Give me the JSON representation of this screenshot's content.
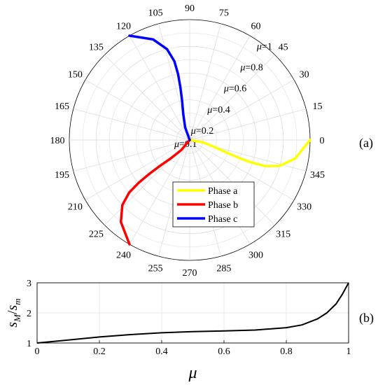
{
  "chart_data": [
    {
      "type": "polar-line",
      "panel_label": "(a)",
      "angle_ticks": [
        "0",
        "15",
        "30",
        "45",
        "60",
        "75",
        "90",
        "105",
        "120",
        "135",
        "150",
        "165",
        "180",
        "195",
        "210",
        "225",
        "240",
        "255",
        "270",
        "285",
        "300",
        "315",
        "330",
        "345"
      ],
      "radial_ticks": [
        {
          "value": 0.1,
          "label": "=0.1"
        },
        {
          "value": 0.2,
          "label": "=0.2"
        },
        {
          "value": 0.4,
          "label": "=0.4"
        },
        {
          "value": 0.6,
          "label": "=0.6"
        },
        {
          "value": 0.8,
          "label": "=0.8"
        },
        {
          "value": 1.0,
          "label": "=1"
        }
      ],
      "radial_symbol": "μ",
      "rlim": [
        0.1,
        1.0
      ],
      "grid": true,
      "legend_position": "bottom-center",
      "series": [
        {
          "name": "Phase a",
          "color": "#ffff00",
          "points": [
            [
              0.1,
              0
            ],
            [
              0.2,
              -10
            ],
            [
              0.3,
              -16
            ],
            [
              0.4,
              -19
            ],
            [
              0.5,
              -20
            ],
            [
              0.6,
              -20
            ],
            [
              0.7,
              -19
            ],
            [
              0.8,
              -16
            ],
            [
              0.9,
              -10
            ],
            [
              1.0,
              0
            ]
          ]
        },
        {
          "name": "Phase b",
          "color": "#ff0000",
          "points": [
            [
              0.1,
              240
            ],
            [
              0.2,
              230
            ],
            [
              0.3,
              224
            ],
            [
              0.4,
              221
            ],
            [
              0.5,
              220
            ],
            [
              0.6,
              220
            ],
            [
              0.7,
              221
            ],
            [
              0.8,
              224
            ],
            [
              0.9,
              230
            ],
            [
              1.0,
              240
            ]
          ]
        },
        {
          "name": "Phase c",
          "color": "#0000ff",
          "points": [
            [
              0.1,
              120
            ],
            [
              0.2,
              110
            ],
            [
              0.3,
              104
            ],
            [
              0.4,
              101
            ],
            [
              0.5,
              100
            ],
            [
              0.6,
              100
            ],
            [
              0.7,
              101
            ],
            [
              0.8,
              104
            ],
            [
              0.9,
              110
            ],
            [
              1.0,
              120
            ]
          ]
        }
      ]
    },
    {
      "type": "line",
      "panel_label": "(b)",
      "xlabel": "μ",
      "ylabel": "s_M / s_m",
      "ylabel_parts": {
        "s1": "s",
        "sub1": "M",
        "slash": "/",
        "s2": "s",
        "sub2": "m"
      },
      "xlim": [
        0,
        1
      ],
      "ylim": [
        1,
        3
      ],
      "xticks": [
        "0",
        "0.2",
        "0.4",
        "0.6",
        "0.8",
        "1"
      ],
      "yticks": [
        "1",
        "2",
        "3"
      ],
      "grid": true,
      "series": [
        {
          "name": "",
          "color": "#000000",
          "x": [
            0,
            0.1,
            0.2,
            0.3,
            0.4,
            0.5,
            0.6,
            0.7,
            0.8,
            0.85,
            0.9,
            0.93,
            0.96,
            0.98,
            1.0
          ],
          "y": [
            1.0,
            1.1,
            1.2,
            1.28,
            1.34,
            1.38,
            1.4,
            1.43,
            1.51,
            1.6,
            1.8,
            2.0,
            2.3,
            2.62,
            3.0
          ]
        }
      ]
    }
  ]
}
